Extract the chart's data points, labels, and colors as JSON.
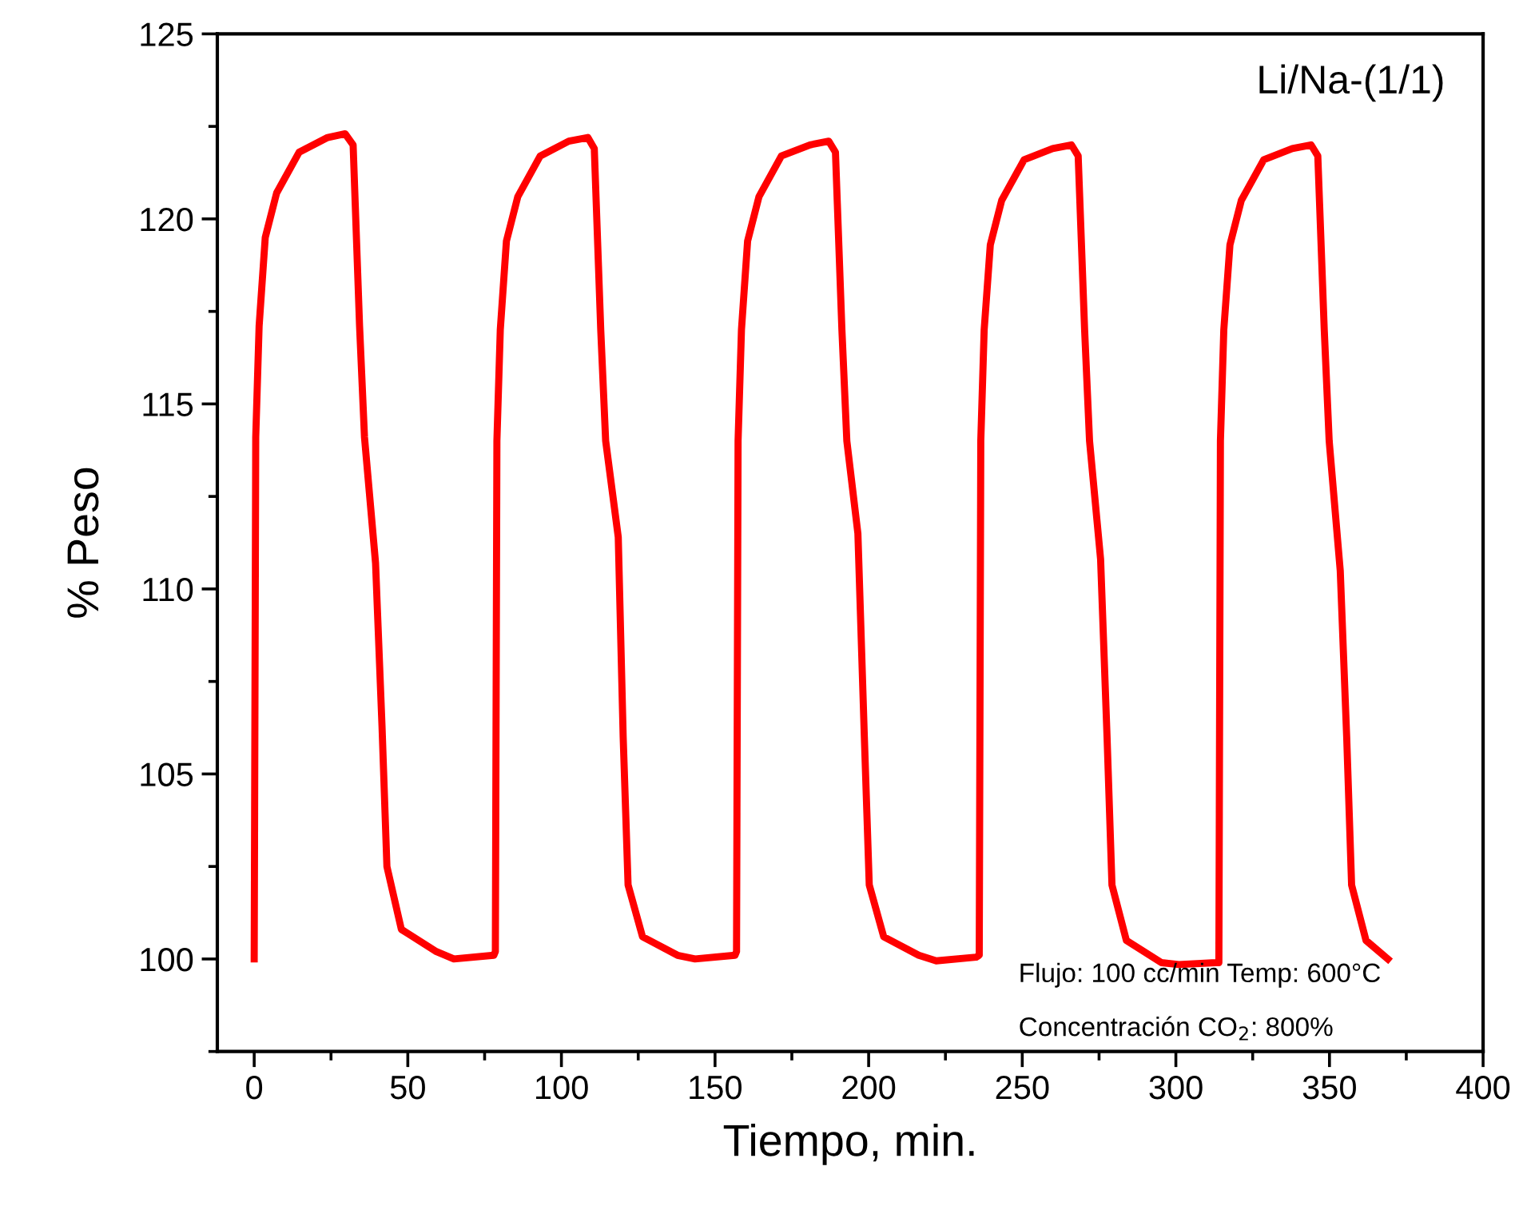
{
  "chart_data": {
    "type": "line",
    "xlabel": "Tiempo, min.",
    "ylabel": "% Peso",
    "xlim": [
      -12,
      400
    ],
    "xticks": [
      0,
      50,
      100,
      150,
      200,
      250,
      300,
      350,
      400
    ],
    "ylim": [
      97.5,
      125
    ],
    "yticks": [
      100,
      105,
      110,
      115,
      120,
      125
    ],
    "grid": false,
    "legend": false,
    "marker": "none",
    "line_style": "solid",
    "annotations": [
      "Li/Na-(1/1)",
      "Flujo: 100 cc/min Temp: 600°C",
      "Concentración CO$_{2}$: 800%"
    ],
    "series": [
      {
        "color": "#ff0000",
        "x": [
          0,
          0.5,
          1.6,
          3.6,
          7.3,
          14.6,
          23.9,
          29.6,
          32.2,
          34.3,
          35.9,
          39.5,
          41.6,
          43.2,
          47.9,
          59.3,
          65,
          78,
          78.5,
          79,
          80.1,
          82.1,
          85.8,
          93.1,
          102.4,
          108.6,
          110.7,
          112.8,
          114.4,
          118.5,
          120.1,
          121.7,
          126.4,
          137.8,
          143.5,
          156.5,
          157,
          157.5,
          158.6,
          160.6,
          164.3,
          171.6,
          180.9,
          187,
          189.2,
          191.3,
          192.9,
          196.5,
          198.6,
          200.2,
          204.9,
          216.3,
          222,
          235,
          236,
          236.5,
          237.6,
          239.6,
          243.3,
          250.6,
          259.9,
          266,
          268.2,
          270.3,
          271.9,
          275.5,
          277.6,
          279.2,
          283.9,
          295.3,
          301,
          313,
          314,
          314.5,
          315.6,
          317.6,
          321.3,
          328.6,
          337.9,
          344,
          346.2,
          348.3,
          349.9,
          353.5,
          355.6,
          357.2,
          361.9,
          369
        ],
        "values": [
          100,
          114.1,
          117.1,
          119.5,
          120.7,
          121.8,
          122.2,
          122.3,
          122.0,
          117.1,
          114.1,
          110.7,
          106.3,
          102.5,
          100.8,
          100.2,
          100.0,
          100.1,
          100.2,
          114,
          117,
          119.4,
          120.6,
          121.7,
          122.1,
          122.2,
          121.9,
          117,
          114,
          111.4,
          106,
          102,
          100.6,
          100.1,
          100.0,
          100.1,
          100.2,
          114,
          117,
          119.4,
          120.6,
          121.7,
          122.0,
          122.1,
          121.8,
          117,
          114,
          111.5,
          106,
          102,
          100.6,
          100.1,
          99.95,
          100.05,
          100.1,
          114,
          117,
          119.3,
          120.5,
          121.6,
          121.9,
          122.0,
          121.7,
          117,
          114,
          110.8,
          106,
          102,
          100.5,
          99.9,
          99.85,
          99.9,
          99.9,
          114,
          117,
          119.3,
          120.5,
          121.6,
          121.9,
          122.0,
          121.7,
          117,
          114,
          110.5,
          106,
          102,
          100.5,
          100.0
        ]
      }
    ]
  }
}
